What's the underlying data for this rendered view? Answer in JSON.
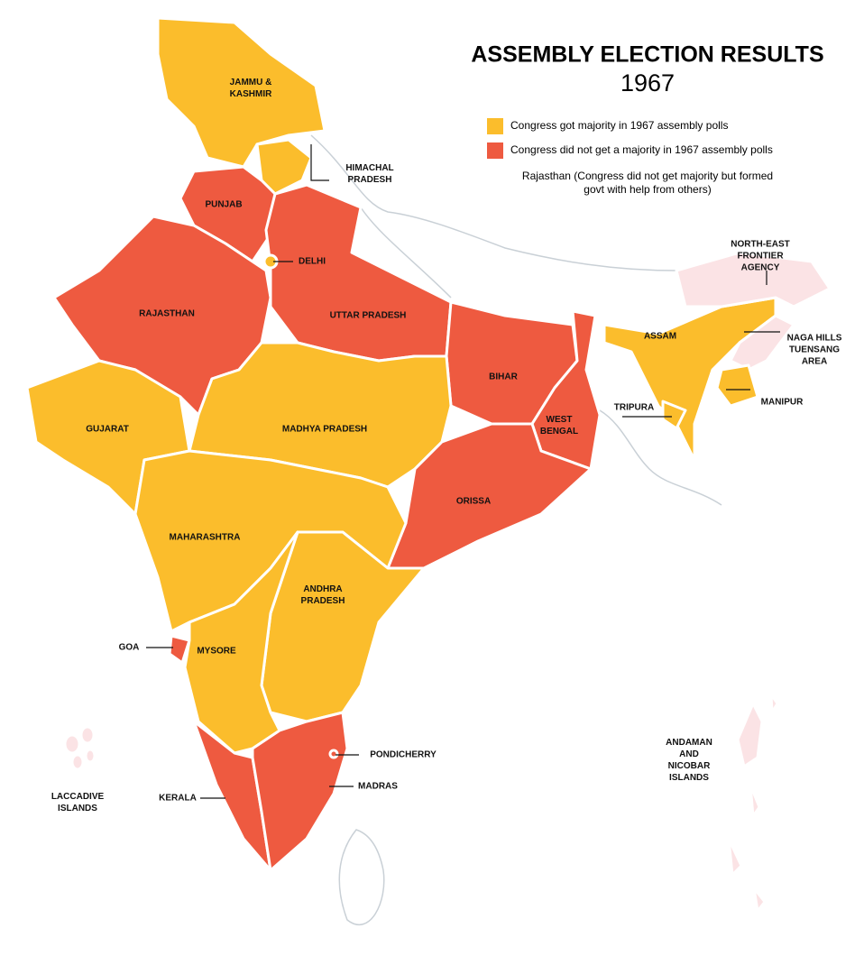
{
  "title": "ASSEMBLY ELECTION RESULTS",
  "year": "1967",
  "legend": [
    {
      "label": "Congress got majority in 1967 assembly polls",
      "color": "#fbbd2c"
    },
    {
      "label": "Congress did not get a majority in 1967 assembly polls",
      "color": "#ee5a40"
    }
  ],
  "note": [
    "Rajasthan (Congress did not get majority but formed",
    "govt with help from others)"
  ],
  "regions": [
    {
      "lines": [
        "JAMMU &",
        "KASHMIR"
      ],
      "color": "#fbbd2c"
    },
    {
      "lines": [
        "HIMACHAL",
        "PRADESH"
      ],
      "color": "#fbbd2c"
    },
    {
      "lines": [
        "PUNJAB"
      ],
      "color": "#ee5a40"
    },
    {
      "lines": [
        "RAJASTHAN"
      ],
      "color": "#ee5a40"
    },
    {
      "lines": [
        "UTTAR PRADESH"
      ],
      "color": "#ee5a40"
    },
    {
      "lines": [
        "DELHI"
      ],
      "color": "#fbbd2c"
    },
    {
      "lines": [
        "BIHAR"
      ],
      "color": "#ee5a40"
    },
    {
      "lines": [
        "WEST",
        "BENGAL"
      ],
      "color": "#ee5a40"
    },
    {
      "lines": [
        "GUJARAT"
      ],
      "color": "#fbbd2c"
    },
    {
      "lines": [
        "MADHYA PRADESH"
      ],
      "color": "#fbbd2c"
    },
    {
      "lines": [
        "ORISSA"
      ],
      "color": "#ee5a40"
    },
    {
      "lines": [
        "MAHARASHTRA"
      ],
      "color": "#fbbd2c"
    },
    {
      "lines": [
        "ANDHRA",
        "PRADESH"
      ],
      "color": "#fbbd2c"
    },
    {
      "lines": [
        "GOA"
      ],
      "color": "#ee5a40"
    },
    {
      "lines": [
        "MYSORE"
      ],
      "color": "#fbbd2c"
    },
    {
      "lines": [
        "KERALA"
      ],
      "color": "#ee5a40"
    },
    {
      "lines": [
        "MADRAS"
      ],
      "color": "#ee5a40"
    },
    {
      "lines": [
        "PONDICHERRY"
      ],
      "color": "#ee5a40"
    },
    {
      "lines": [
        "ASSAM"
      ],
      "color": "#fbbd2c"
    },
    {
      "lines": [
        "NORTH-EAST",
        "FRONTIER",
        "AGENCY"
      ],
      "color": "#fbe3e5"
    },
    {
      "lines": [
        "NAGA HILLS",
        "TUENSANG",
        "AREA"
      ],
      "color": "#fbe3e5"
    },
    {
      "lines": [
        "MANIPUR"
      ],
      "color": "#fbbd2c"
    },
    {
      "lines": [
        "TRIPURA"
      ],
      "color": "#fbbd2c"
    },
    {
      "lines": [
        "ANDAMAN",
        "AND",
        "NICOBAR",
        "ISLANDS"
      ],
      "color": "#fbe3e5"
    },
    {
      "lines": [
        "LACCADIVE",
        "ISLANDS"
      ],
      "color": "#fbe3e5"
    }
  ]
}
